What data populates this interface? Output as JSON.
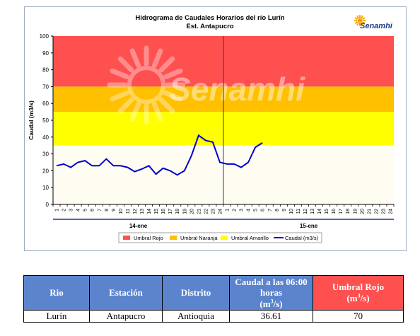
{
  "chart_data": {
    "type": "line",
    "title": "Hidrograma de Caudales Horarios del río Lurín",
    "subtitle": "Est. Antapucro",
    "ylabel": "Caudal  (m3/s)",
    "ylim": [
      0,
      100
    ],
    "yticks": [
      0,
      10,
      20,
      30,
      40,
      50,
      60,
      70,
      80,
      90,
      100
    ],
    "xticks": [
      "1",
      "2",
      "3",
      "4",
      "5",
      "6",
      "7",
      "8",
      "9",
      "10",
      "11",
      "12",
      "13",
      "14",
      "15",
      "16",
      "17",
      "18",
      "19",
      "20",
      "21",
      "22",
      "23",
      "24",
      "1",
      "2",
      "3",
      "4",
      "5",
      "6",
      "7",
      "8",
      "9",
      "10",
      "11",
      "12",
      "13",
      "14",
      "15",
      "16",
      "17",
      "18",
      "19",
      "20",
      "21",
      "22",
      "23",
      "24"
    ],
    "day_labels": [
      "14-ene",
      "15-ene"
    ],
    "thresholds": [
      {
        "name": "Umbral Rojo",
        "from": 70,
        "to": 100,
        "color": "#ff5050"
      },
      {
        "name": "Umbral Naranja",
        "from": 55,
        "to": 70,
        "color": "#ffc000"
      },
      {
        "name": "Umbral Amarillo",
        "from": 35,
        "to": 55,
        "color": "#ffff00"
      }
    ],
    "series": [
      {
        "name": "Caudal (m3/s)",
        "color": "#0000cc",
        "values": [
          23,
          24,
          22,
          25,
          26,
          23,
          23,
          27,
          23,
          23,
          22,
          19.5,
          21,
          23,
          18,
          21.5,
          20,
          17.5,
          20,
          29,
          41,
          38,
          37,
          25,
          24,
          24,
          22,
          25,
          34,
          36.6
        ]
      }
    ],
    "legend_position": "bottom",
    "grid": false,
    "watermark": "Senamhi",
    "logo_text": "Senamhi"
  },
  "table": {
    "headers": [
      {
        "text": "Rio",
        "color": "#5b84cc"
      },
      {
        "text": "Estación",
        "color": "#5b84cc"
      },
      {
        "text": "Distrito",
        "color": "#5b84cc"
      },
      {
        "text": "Caudal a las 06:00 horas",
        "unit_base": "(m",
        "unit_exp": "3",
        "unit_tail": "/s)",
        "color": "#5b84cc"
      },
      {
        "text": "Umbral Rojo",
        "unit_base": "(m",
        "unit_exp": "3",
        "unit_tail": "/s)",
        "color": "#ff5050"
      }
    ],
    "row": [
      "Lurín",
      "Antapucro",
      "Antioquia",
      "36.61",
      "70"
    ]
  }
}
